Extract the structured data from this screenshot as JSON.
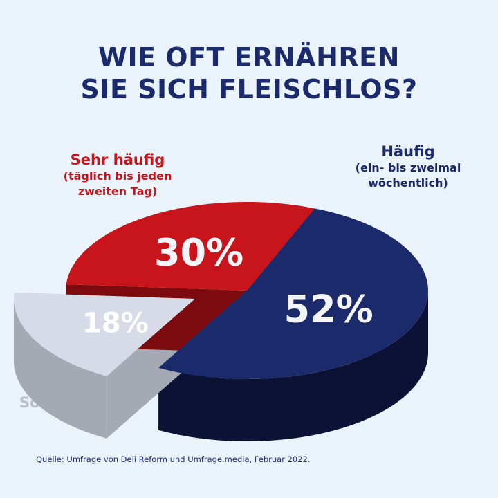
{
  "title_line1": "WIE OFT ERNÄHREN",
  "title_line2": "SIE SICH FLEISCHLOS?",
  "source": "Quelle: Umfrage von Deli Reform und Umfrage.media, Februar 2022.",
  "chart_data": {
    "type": "pie",
    "title": "WIE OFT ERNÄHREN SIE SICH FLEISCHLOS?",
    "slices": [
      {
        "label": "Häufig",
        "sublabel": [
          "(ein- bis zweimal",
          "wöchentlich)"
        ],
        "value": 52,
        "value_label": "52%",
        "color": "#1b2a6b",
        "side_color": "#0c1236"
      },
      {
        "label": "Sonstige",
        "sublabel": [],
        "value": 18,
        "value_label": "18%",
        "color": "#d6dbe7",
        "side_color": "#a4a9b4",
        "exploded": true
      },
      {
        "label": "Sehr häufig",
        "sublabel": [
          "(täglich bis jeden",
          "zweiten Tag)"
        ],
        "value": 30,
        "value_label": "30%",
        "color": "#c8151b",
        "side_color": "#7d0a0e"
      }
    ]
  }
}
